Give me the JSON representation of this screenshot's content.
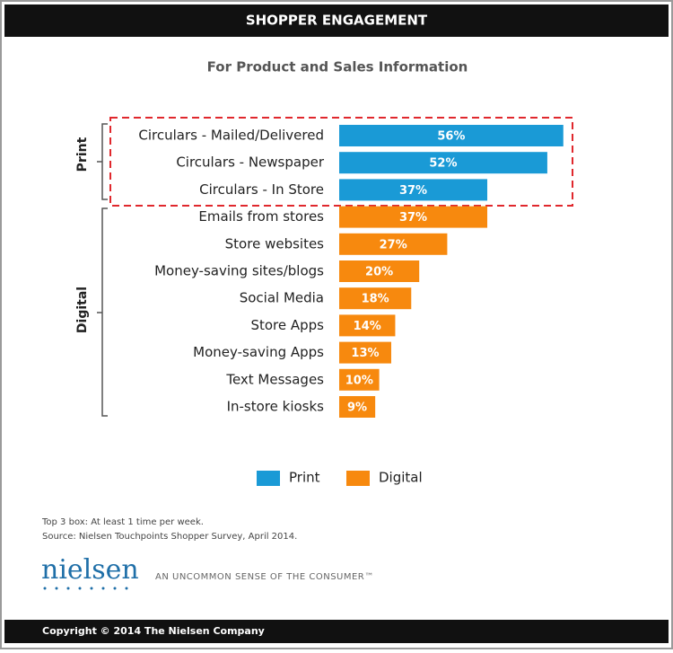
{
  "header": "SHOPPER ENGAGEMENT",
  "chart_data": {
    "type": "bar-horizontal",
    "title": "For Product and Sales Information",
    "categories": [
      "Circulars - Mailed/Delivered",
      "Circulars - Newspaper",
      "Circulars - In Store",
      "Emails from stores",
      "Store websites",
      "Money-saving sites/blogs",
      "Social Media",
      "Store Apps",
      "Money-saving Apps",
      "Text Messages",
      "In-store kiosks"
    ],
    "series": [
      {
        "name": "Print",
        "color": "#1a9ad6",
        "values": [
          56,
          52,
          37,
          null,
          null,
          null,
          null,
          null,
          null,
          null,
          null
        ],
        "value_labels": [
          "56%",
          "52%",
          "37%",
          null,
          null,
          null,
          null,
          null,
          null,
          null,
          null
        ]
      },
      {
        "name": "Digital",
        "color": "#f7890e",
        "values": [
          null,
          null,
          null,
          37,
          27,
          20,
          18,
          14,
          13,
          10,
          9
        ],
        "value_labels": [
          null,
          null,
          null,
          "37%",
          "27%",
          "20%",
          "18%",
          "14%",
          "13%",
          "10%",
          "9%"
        ]
      }
    ]
  },
  "notes": [
    "Top 3 box: At least 1 time per week.",
    "Source: Nielsen Touchpoints Shopper Survey, April 2014."
  ],
  "logo": "nielsen",
  "tagline": "AN UNCOMMON SENSE OF THE CONSUMER™",
  "footer": "Copyright © 2014 The Nielsen Company"
}
